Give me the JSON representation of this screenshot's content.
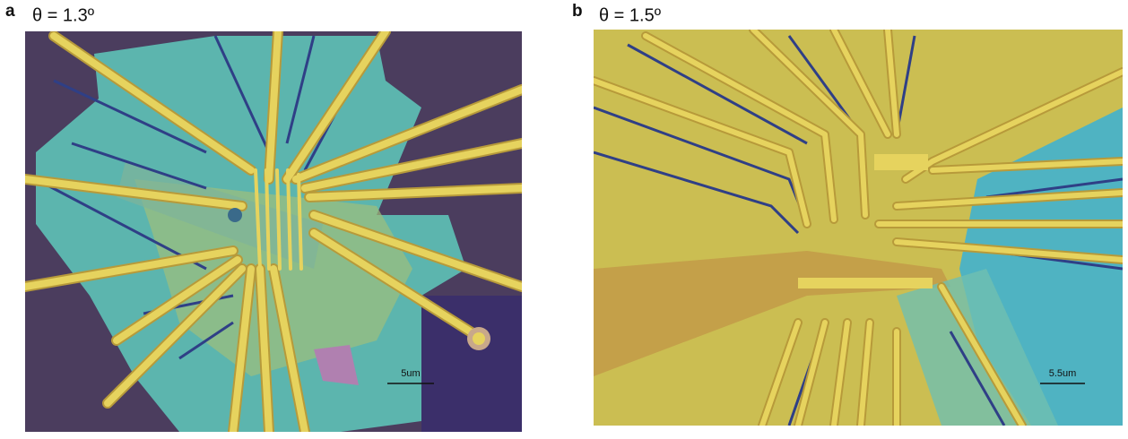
{
  "panels": [
    {
      "letter": "a",
      "title": "θ = 1.3º",
      "scale_bar": "5um"
    },
    {
      "letter": "b",
      "title": "θ = 1.5º",
      "scale_bar": "5.5um"
    }
  ]
}
